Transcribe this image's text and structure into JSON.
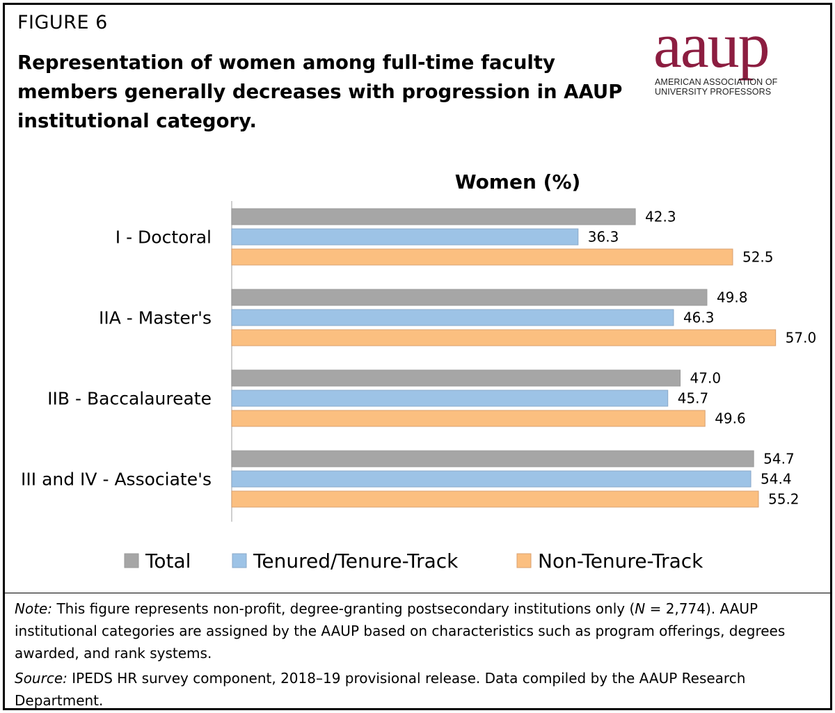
{
  "figure_label": "FIGURE 6",
  "title": "Representation of women among full-time faculty members generally decreases with progression in AAUP institutional category.",
  "logo": {
    "wordmark": "aaup",
    "line1": "AMERICAN ASSOCIATION OF",
    "line2": "UNIVERSITY PROFESSORS",
    "color": "#8c1d40"
  },
  "chart_data": {
    "type": "bar",
    "orientation": "horizontal",
    "title": "Women (%)",
    "categories": [
      "I - Doctoral",
      "IIA - Master's",
      "IIB - Baccalaureate",
      "III and IV - Associate's"
    ],
    "series": [
      {
        "name": "Total",
        "values": [
          42.3,
          49.8,
          47.0,
          54.7
        ],
        "color": "#a6a6a6"
      },
      {
        "name": "Tenured/Tenure-Track",
        "values": [
          36.3,
          46.3,
          45.7,
          54.4
        ],
        "color": "#9dc3e6"
      },
      {
        "name": "Non-Tenure-Track",
        "values": [
          52.5,
          57.0,
          49.6,
          55.2
        ],
        "color": "#fbbf80"
      }
    ],
    "xlim": [
      0,
      60
    ],
    "grid": false,
    "legend_position": "bottom"
  },
  "notes": {
    "note_label": "Note:",
    "note_part1": " This figure represents non-profit, degree-granting postsecondary institutions only (",
    "note_n": "N",
    "note_part2": " = 2,774). AAUP institutional categories are assigned by the AAUP based on characteristics such as program offerings, degrees awarded, and rank systems.",
    "source_label": "Source:",
    "source_text": " IPEDS HR survey component, 2018–19 provisional release. Data compiled by the AAUP Research Department."
  }
}
